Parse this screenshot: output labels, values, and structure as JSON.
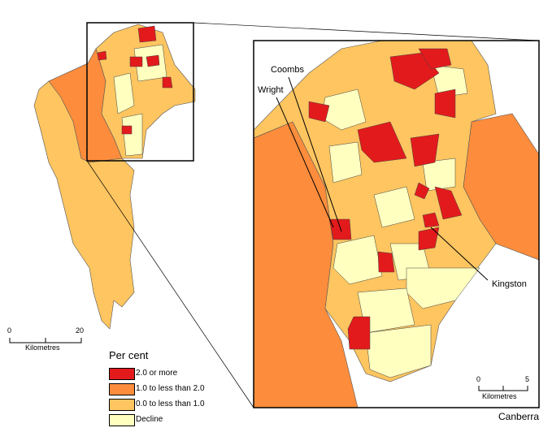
{
  "colors": {
    "high": "#e31a1c",
    "mid": "#fd8d3c",
    "low": "#fec560",
    "decline": "#ffffbf"
  },
  "legend": {
    "title": "Per cent",
    "items": [
      {
        "label": "2.0 or more",
        "color": "#e31a1c"
      },
      {
        "label": "1.0 to less than 2.0",
        "color": "#fd8d3c"
      },
      {
        "label": "0.0 to less than 1.0",
        "color": "#fec560"
      },
      {
        "label": "Decline",
        "color": "#ffffbf"
      }
    ]
  },
  "scale_main": {
    "start": "0",
    "end": "20",
    "unit": "Kilometres"
  },
  "scale_inset": {
    "start": "0",
    "end": "5",
    "unit": "Kilometres"
  },
  "inset_title": "Canberra",
  "labels": {
    "coombs": "Coombs",
    "wright": "Wright",
    "kingston": "Kingston"
  }
}
